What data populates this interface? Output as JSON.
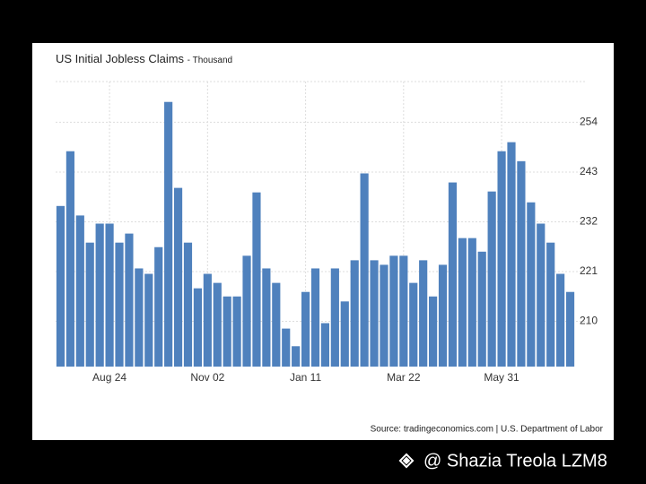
{
  "chart_data": {
    "type": "bar",
    "title": "US Initial Jobless Claims",
    "subtitle": "- Thousand",
    "categories": [
      null,
      null,
      null,
      null,
      null,
      "Aug 24",
      null,
      null,
      null,
      null,
      null,
      null,
      null,
      null,
      null,
      "Nov 02",
      null,
      null,
      null,
      null,
      null,
      null,
      null,
      null,
      null,
      "Jan 11",
      null,
      null,
      null,
      null,
      null,
      null,
      null,
      null,
      null,
      "Mar 22",
      null,
      null,
      null,
      null,
      null,
      null,
      null,
      null,
      null,
      "May 31",
      null,
      null,
      null,
      null,
      null,
      null,
      null
    ],
    "values": [
      235.5,
      247.6,
      233.4,
      227.4,
      231.6,
      231.6,
      227.4,
      229.4,
      221.7,
      220.5,
      226.4,
      258.5,
      239.5,
      227.4,
      217.3,
      220.5,
      218.5,
      215.5,
      215.5,
      224.5,
      238.5,
      221.7,
      218.5,
      208.4,
      204.5,
      216.5,
      221.7,
      209.6,
      221.7,
      214.4,
      223.5,
      242.7,
      223.5,
      222.5,
      224.5,
      224.5,
      218.5,
      223.5,
      215.5,
      222.5,
      240.7,
      228.4,
      228.4,
      225.4,
      238.7,
      247.6,
      249.6,
      245.4,
      236.3,
      231.6,
      227.4,
      220.5,
      216.5
    ],
    "color": "#4f81bd",
    "ylim": [
      200,
      263
    ],
    "yticks": [
      210,
      221,
      232,
      243,
      254
    ],
    "grid": true,
    "source": "Source: tradingeconomics.com | U.S. Department of Labor"
  },
  "watermark": "@ Shazia Treola LZM8"
}
